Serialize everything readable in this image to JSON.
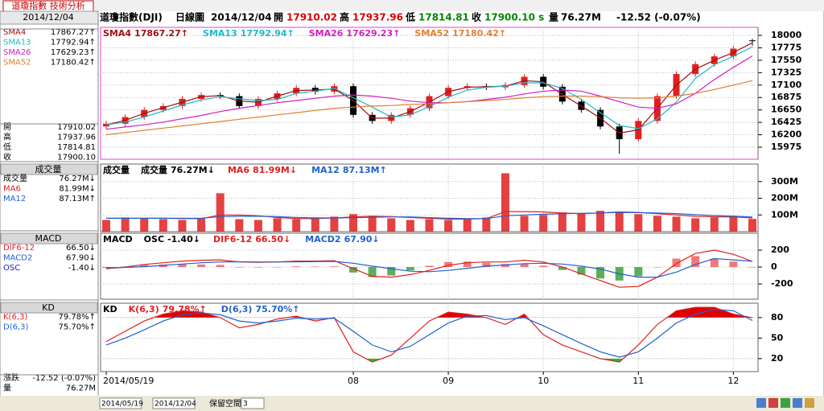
{
  "window_tab": "道瓊指數 技術分析",
  "header": {
    "symbol": "道瓊指數(DJI)",
    "period": "日線圖",
    "date": "2014/12/04",
    "open_label": "開",
    "open": "17910.02",
    "high_label": "高",
    "high": "17937.96",
    "low_label": "低",
    "low": "17814.81",
    "close_label": "收",
    "close": "17900.10 s",
    "volume_label": "量",
    "volume": "76.27M",
    "change": "-12.52 (-0.07%)"
  },
  "left_panel": {
    "date": "2014/12/04",
    "groups": [
      {
        "rows": [
          {
            "label": "SMA4",
            "value": "17867.27↑",
            "color": "#a01010"
          },
          {
            "label": "SMA13",
            "value": "17792.94↑",
            "color": "#20b8c8"
          },
          {
            "label": "SMA26",
            "value": "17629.23↑",
            "color": "#d020c0"
          },
          {
            "label": "SMA52",
            "value": "17180.42↑",
            "color": "#e08030"
          }
        ]
      },
      {
        "rows": [
          {
            "label": "開",
            "value": "17910.02",
            "color": "#000000"
          },
          {
            "label": "高",
            "value": "17937.96",
            "color": "#000000"
          },
          {
            "label": "低",
            "value": "17814.81",
            "color": "#000000"
          },
          {
            "label": "收",
            "value": "17900.10",
            "color": "#000000"
          }
        ]
      },
      {
        "title": "成交量",
        "rows": [
          {
            "label": "成交量",
            "value": "76.27M↓",
            "color": "#000000"
          },
          {
            "label": "MA6",
            "value": "81.99M↓",
            "color": "#e02020"
          },
          {
            "label": "MA12",
            "value": "87.13M↑",
            "color": "#2060d0"
          }
        ]
      },
      {
        "title": "MACD",
        "rows": [
          {
            "label": "DIF6-12",
            "value": "66.50↓",
            "color": "#e02020"
          },
          {
            "label": "MACD2",
            "value": "67.90↓",
            "color": "#2060d0"
          },
          {
            "label": "OSC",
            "value": "-1.40↓",
            "color": "#2020c0"
          }
        ]
      },
      {
        "title": "KD",
        "rows": [
          {
            "label": "K(6,3)",
            "value": "79.78%↑",
            "color": "#e02020"
          },
          {
            "label": "D(6,3)",
            "value": "75.70%↑",
            "color": "#2060d0"
          }
        ]
      },
      {
        "rows": [
          {
            "label": "漲跌",
            "value": "-12.52 (-0.07%)",
            "color": "#000000"
          },
          {
            "label": "量",
            "value": "76.27M",
            "color": "#000000"
          }
        ]
      }
    ]
  },
  "bottom_bar": {
    "from": "2014/05/19",
    "to": "2014/12/04",
    "reserve_label": "保留空間",
    "reserve_value": "3"
  },
  "chart_data": [
    {
      "type": "candlestick",
      "up_color": "#e02020",
      "down_color": "#000000",
      "open": [
        16350,
        16400,
        16520,
        16650,
        16720,
        16850,
        16920,
        16900,
        16720,
        16850,
        16950,
        17050,
        16980,
        17080,
        16560,
        16450,
        16560,
        16680,
        16900,
        17050,
        17080,
        17060,
        17100,
        17250,
        17070,
        16800,
        16650,
        16350,
        16120,
        16450,
        16900,
        17300,
        17480,
        17620,
        17910.02
      ],
      "high": [
        16450,
        16570,
        16700,
        16770,
        16900,
        16970,
        16970,
        16950,
        16900,
        17000,
        17100,
        17100,
        17130,
        17130,
        16610,
        16610,
        16730,
        16950,
        17100,
        17130,
        17130,
        17150,
        17300,
        17300,
        17120,
        16850,
        16700,
        16400,
        16500,
        16950,
        17350,
        17530,
        17670,
        17810,
        17937.96
      ],
      "low": [
        16300,
        16350,
        16470,
        16600,
        16670,
        16800,
        16850,
        16670,
        16670,
        16800,
        16900,
        16930,
        16930,
        16510,
        16400,
        16400,
        16510,
        16630,
        16850,
        17000,
        17010,
        17010,
        17050,
        17020,
        16750,
        16600,
        16300,
        15855,
        16070,
        16400,
        16850,
        17250,
        17430,
        17570,
        17814.81
      ],
      "close": [
        16400,
        16520,
        16650,
        16720,
        16850,
        16920,
        16900,
        16720,
        16850,
        16950,
        17050,
        16980,
        17080,
        16560,
        16450,
        16560,
        16680,
        16900,
        17050,
        17080,
        17060,
        17100,
        17250,
        17070,
        16800,
        16650,
        16350,
        16120,
        16450,
        16900,
        17300,
        17480,
        17620,
        17760,
        17900.1
      ],
      "series": [
        {
          "name": "SMA4",
          "legend": "17867.27↑",
          "color": "#a01010",
          "values": [
            16380,
            16460,
            16590,
            16690,
            16790,
            16890,
            16910,
            16810,
            16790,
            16900,
            17000,
            17010,
            17030,
            16820,
            16500,
            16500,
            16620,
            16790,
            16980,
            17060,
            17070,
            17080,
            17180,
            17160,
            16930,
            16720,
            16500,
            16230,
            16290,
            16680,
            17100,
            17390,
            17550,
            17690,
            17867.27
          ]
        },
        {
          "name": "SMA13",
          "legend": "17792.94↑",
          "color": "#20b8c8",
          "values": [
            16380,
            16430,
            16520,
            16630,
            16740,
            16830,
            16890,
            16850,
            16820,
            16840,
            16950,
            16990,
            17040,
            16870,
            16700,
            16520,
            16560,
            16710,
            16880,
            17010,
            17060,
            17080,
            17140,
            17140,
            17040,
            16840,
            16600,
            16370,
            16310,
            16490,
            16790,
            17220,
            17470,
            17620,
            17792.94
          ]
        },
        {
          "name": "SMA26",
          "legend": "17629.23↑",
          "color": "#d020c0",
          "values": [
            16300,
            16340,
            16380,
            16430,
            16490,
            16550,
            16620,
            16680,
            16730,
            16780,
            16820,
            16860,
            16900,
            16920,
            16900,
            16860,
            16810,
            16780,
            16780,
            16800,
            16840,
            16880,
            16940,
            16990,
            17010,
            16990,
            16900,
            16800,
            16700,
            16680,
            16760,
            16950,
            17200,
            17420,
            17629.23
          ]
        },
        {
          "name": "SMA52",
          "legend": "17180.42↑",
          "color": "#e08030",
          "values": [
            16200,
            16240,
            16280,
            16320,
            16360,
            16400,
            16440,
            16480,
            16520,
            16560,
            16600,
            16640,
            16680,
            16700,
            16720,
            16730,
            16750,
            16760,
            16780,
            16800,
            16820,
            16840,
            16870,
            16890,
            16900,
            16900,
            16890,
            16870,
            16860,
            16870,
            16900,
            16950,
            17020,
            17100,
            17180.42
          ]
        }
      ],
      "ylim": [
        15756,
        18146
      ],
      "yticks": [
        15975,
        16200,
        16425,
        16650,
        16875,
        17100,
        17325,
        17550,
        17775,
        18000
      ],
      "grid": true
    },
    {
      "type": "bar",
      "title": "成交量",
      "bar_name": "成交量",
      "bar_legend": "76.27M↓",
      "color": "#e02020",
      "values": [
        70,
        85,
        80,
        75,
        70,
        80,
        230,
        75,
        70,
        80,
        75,
        85,
        90,
        105,
        95,
        80,
        70,
        75,
        70,
        80,
        85,
        350,
        95,
        100,
        115,
        110,
        125,
        120,
        105,
        95,
        90,
        80,
        85,
        95,
        76.27
      ],
      "series": [
        {
          "name": "MA6",
          "legend": "81.99M↓",
          "color": "#e02020",
          "values": [
            80,
            80,
            80,
            80,
            78,
            78,
            100,
            100,
            95,
            85,
            78,
            78,
            82,
            88,
            92,
            90,
            85,
            80,
            75,
            75,
            78,
            120,
            120,
            118,
            112,
            108,
            112,
            118,
            115,
            108,
            100,
            92,
            88,
            88,
            81.99
          ]
        },
        {
          "name": "MA12",
          "legend": "87.13M↑",
          "color": "#2060d0",
          "values": [
            80,
            80,
            80,
            80,
            80,
            80,
            90,
            92,
            92,
            90,
            85,
            82,
            82,
            84,
            86,
            88,
            88,
            84,
            80,
            78,
            78,
            95,
            100,
            104,
            108,
            110,
            112,
            115,
            114,
            112,
            108,
            102,
            96,
            92,
            87.13
          ]
        }
      ],
      "ylim": [
        0,
        405
      ],
      "yticks": [
        {
          "value": 100,
          "label": "100M"
        },
        {
          "value": 200,
          "label": "200M"
        },
        {
          "value": 300,
          "label": "300M"
        }
      ],
      "grid": true
    },
    {
      "type": "bar",
      "title": "MACD",
      "bar_name": "OSC",
      "bar_legend": "-1.40↓",
      "color": "#f06060",
      "negative_color": "#40a040",
      "values": [
        -10,
        5,
        25,
        30,
        35,
        30,
        25,
        -2,
        -5,
        0,
        8,
        6,
        8,
        -65,
        -120,
        -100,
        -40,
        15,
        60,
        65,
        50,
        35,
        40,
        15,
        -35,
        -90,
        -135,
        -160,
        -110,
        0,
        100,
        130,
        100,
        65,
        -1.4
      ],
      "series": [
        {
          "name": "DIF6-12",
          "legend": "66.50↓",
          "color": "#e02020",
          "values": [
            -20,
            0,
            30,
            50,
            70,
            80,
            85,
            60,
            55,
            60,
            70,
            70,
            75,
            -20,
            -110,
            -120,
            -90,
            -40,
            20,
            50,
            60,
            60,
            80,
            60,
            0,
            -80,
            -160,
            -240,
            -230,
            -120,
            40,
            160,
            200,
            150,
            66.5
          ]
        },
        {
          "name": "MACD2",
          "legend": "67.90↓",
          "color": "#2060d0",
          "values": [
            -10,
            -5,
            5,
            20,
            35,
            50,
            60,
            62,
            60,
            60,
            62,
            64,
            67,
            45,
            10,
            -20,
            -50,
            -55,
            -40,
            -15,
            10,
            25,
            40,
            45,
            35,
            10,
            -25,
            -80,
            -120,
            -120,
            -60,
            30,
            100,
            85,
            67.9
          ]
        }
      ],
      "ylim": [
        -381,
        400
      ],
      "yticks": [
        -200,
        0,
        200
      ],
      "grid": true
    },
    {
      "type": "line",
      "title": "KD",
      "overbought": 80,
      "oversold": 20,
      "overbought_color": "#e00000",
      "oversold_color": "#20c020",
      "categories": [
        "2014/05/19",
        null,
        null,
        null,
        null,
        null,
        null,
        null,
        null,
        null,
        null,
        null,
        null,
        "08",
        null,
        null,
        null,
        null,
        "09",
        null,
        null,
        null,
        null,
        "10",
        null,
        null,
        null,
        null,
        "11",
        null,
        null,
        null,
        null,
        "12",
        null
      ],
      "series": [
        {
          "name": "K(6,3)",
          "legend": "79.78%↑",
          "color": "#e02020",
          "values": [
            45,
            60,
            75,
            85,
            90,
            88,
            80,
            65,
            70,
            78,
            82,
            75,
            80,
            30,
            15,
            25,
            50,
            75,
            88,
            85,
            80,
            70,
            85,
            55,
            40,
            30,
            20,
            15,
            40,
            70,
            90,
            95,
            95,
            85,
            79.78
          ]
        },
        {
          "name": "D(6,3)",
          "legend": "75.70%↑",
          "color": "#2060d0",
          "values": [
            40,
            50,
            62,
            75,
            84,
            87,
            84,
            75,
            72,
            75,
            79,
            78,
            79,
            60,
            40,
            30,
            38,
            55,
            72,
            82,
            83,
            77,
            80,
            68,
            55,
            42,
            30,
            22,
            30,
            50,
            72,
            85,
            92,
            90,
            75.7
          ]
        }
      ],
      "ylim": [
        1,
        101
      ],
      "yticks": [
        20,
        50,
        80
      ],
      "grid": true
    }
  ]
}
